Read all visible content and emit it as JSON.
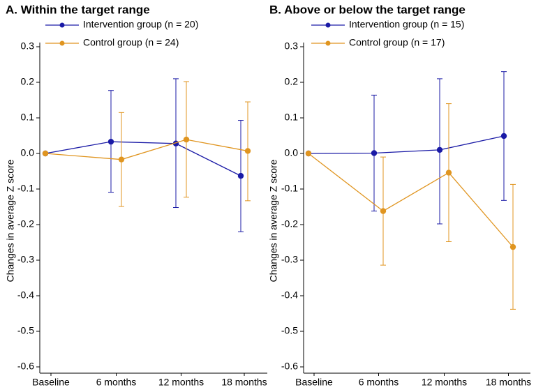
{
  "colors": {
    "intervention": "#1a1aa6",
    "control": "#e09520",
    "axis": "#000000"
  },
  "chart_data": [
    {
      "type": "line",
      "title": "A. Within the target range",
      "xlabel": "",
      "ylabel": "Changes in average Z score",
      "categories": [
        "Baseline",
        "6 months",
        "12 months",
        "18 months"
      ],
      "ylim": [
        -0.6,
        0.3
      ],
      "yticks": [
        "0.3",
        "0.2",
        "0.1",
        "0.0",
        "-0.1",
        "-0.2",
        "-0.3",
        "-0.4",
        "-0.5",
        "-0.6"
      ],
      "series": [
        {
          "name": "Intervention group (n = 20)",
          "values": [
            0.0,
            0.033,
            0.028,
            -0.063
          ],
          "lower": [
            0.0,
            -0.109,
            -0.152,
            -0.22
          ],
          "upper": [
            0.0,
            0.177,
            0.21,
            0.093
          ]
        },
        {
          "name": "Control group (n = 24)",
          "values": [
            0.0,
            -0.017,
            0.039,
            0.007
          ],
          "lower": [
            0.0,
            -0.149,
            -0.123,
            -0.133
          ],
          "upper": [
            0.0,
            0.115,
            0.202,
            0.145
          ]
        }
      ]
    },
    {
      "type": "line",
      "title": "B. Above or below the target range",
      "xlabel": "",
      "ylabel": "Changes in average Z score",
      "categories": [
        "Baseline",
        "6 months",
        "12 months",
        "18 months"
      ],
      "ylim": [
        -0.6,
        0.3
      ],
      "yticks": [
        "0.3",
        "0.2",
        "0.1",
        "0.0",
        "-0.1",
        "-0.2",
        "-0.3",
        "-0.4",
        "-0.5",
        "-0.6"
      ],
      "series": [
        {
          "name": "Intervention group (n = 15)",
          "values": [
            0.0,
            0.001,
            0.01,
            0.049
          ],
          "lower": [
            0.0,
            -0.162,
            -0.198,
            -0.132
          ],
          "upper": [
            0.0,
            0.164,
            0.21,
            0.23
          ]
        },
        {
          "name": "Control group (n = 17)",
          "values": [
            0.0,
            -0.162,
            -0.054,
            -0.263
          ],
          "lower": [
            0.0,
            -0.314,
            -0.248,
            -0.438
          ],
          "upper": [
            0.0,
            -0.01,
            0.14,
            -0.087
          ]
        }
      ]
    }
  ]
}
